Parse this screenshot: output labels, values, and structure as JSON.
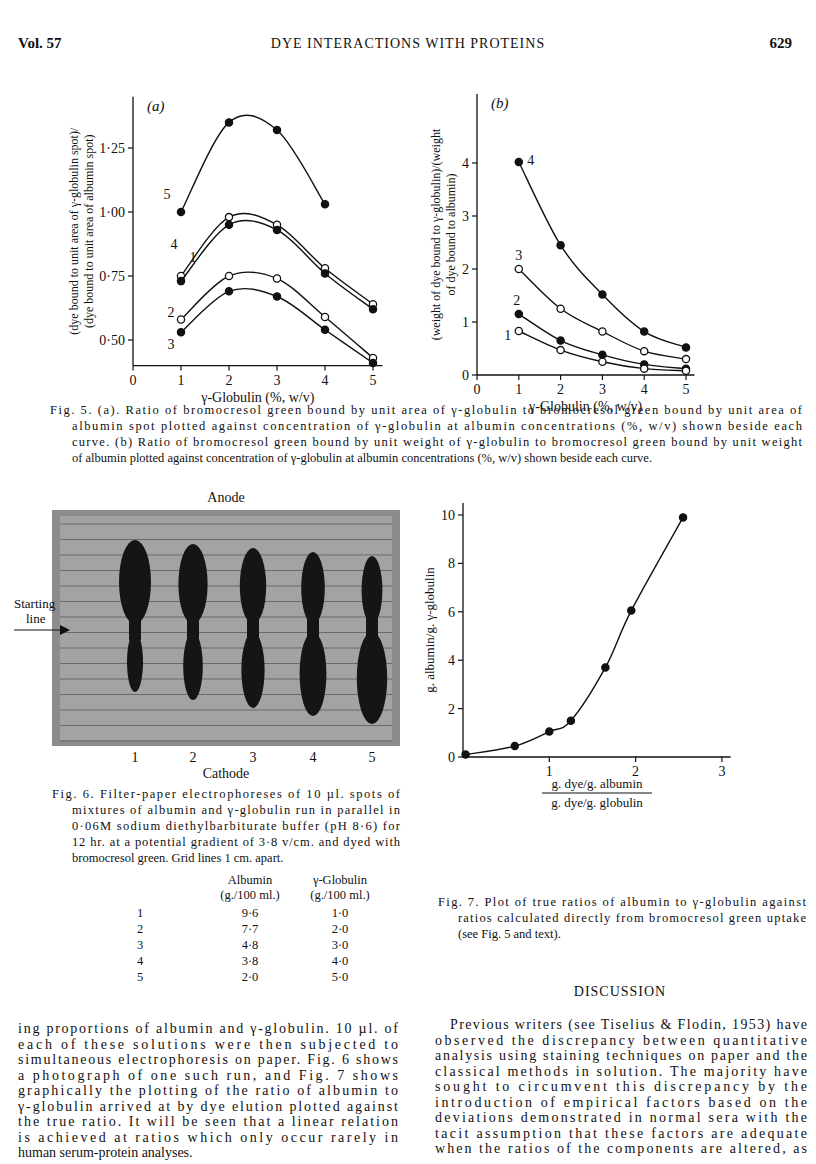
{
  "header": {
    "volume": "Vol. 57",
    "title": "DYE INTERACTIONS WITH PROTEINS",
    "page": "629"
  },
  "chart_data": [
    {
      "type": "line",
      "panel_label": "(a)",
      "x_label": "γ-Globulin (%, w/v)",
      "y_label": [
        "(dye bound to unit area of γ-globulin spot)/",
        "(dye bound to unit area of albumin spot)"
      ],
      "x": [
        1,
        2,
        3,
        4,
        5
      ],
      "series": [
        {
          "name": "5",
          "marker": "filled",
          "color": "#111111",
          "values": [
            1.0,
            1.35,
            1.32,
            1.03,
            null
          ]
        },
        {
          "name": "4",
          "marker": "open",
          "color": "#111111",
          "values": [
            0.75,
            0.98,
            0.95,
            0.78,
            0.64
          ]
        },
        {
          "name": "1",
          "marker": "filled",
          "color": "#111111",
          "values": [
            0.73,
            0.95,
            0.93,
            0.76,
            0.62
          ]
        },
        {
          "name": "2",
          "marker": "open",
          "color": "#111111",
          "values": [
            0.58,
            0.75,
            0.74,
            0.59,
            0.43
          ]
        },
        {
          "name": "3",
          "marker": "filled",
          "color": "#111111",
          "values": [
            0.53,
            0.69,
            0.67,
            0.54,
            0.41
          ]
        }
      ],
      "xlim": [
        0,
        5.2
      ],
      "ylim": [
        0.4,
        1.45
      ],
      "xticks": [
        0,
        1,
        2,
        3,
        4,
        5
      ],
      "yticks": [
        {
          "value": 0.5,
          "label": "0·50"
        },
        {
          "value": 0.75,
          "label": "0·75"
        },
        {
          "value": 1.0,
          "label": "1·00"
        },
        {
          "value": 1.25,
          "label": "1·25"
        }
      ]
    },
    {
      "type": "line",
      "panel_label": "(b)",
      "x_label": "γ-Globulin (%, w/v)",
      "y_label": [
        "(weight of dye bound to γ-globulin)/(weight",
        "of dye bound to albumin)"
      ],
      "x": [
        1,
        2,
        3,
        4,
        5
      ],
      "series": [
        {
          "name": "4",
          "marker": "filled",
          "color": "#111111",
          "values": [
            4.02,
            2.45,
            1.52,
            0.82,
            0.52
          ]
        },
        {
          "name": "3",
          "marker": "open",
          "color": "#111111",
          "values": [
            2.0,
            1.25,
            0.82,
            0.45,
            0.3
          ]
        },
        {
          "name": "2",
          "marker": "filled",
          "color": "#111111",
          "values": [
            1.15,
            0.65,
            0.38,
            0.2,
            0.12
          ]
        },
        {
          "name": "1",
          "marker": "open",
          "color": "#111111",
          "values": [
            0.83,
            0.47,
            0.25,
            0.12,
            0.08
          ]
        }
      ],
      "xlim": [
        0,
        5.2
      ],
      "ylim": [
        0,
        5.3
      ],
      "xticks": [
        0,
        1,
        2,
        3,
        4,
        5
      ],
      "yticks": [
        0,
        1,
        2,
        3,
        4
      ]
    },
    {
      "type": "line",
      "marker": "filled",
      "color": "#111111",
      "y_label": "g. albumin/g. γ-globulin",
      "x_label": "g. dye/g. albumin",
      "x_label_denominator": "g. dye/g. globulin",
      "x": [
        0.03,
        0.6,
        1.0,
        1.25,
        1.65,
        1.95,
        2.55
      ],
      "values": [
        0.1,
        0.45,
        1.05,
        1.5,
        3.7,
        6.05,
        9.9
      ],
      "xlim": [
        0,
        3.1
      ],
      "ylim": [
        0,
        10.5
      ],
      "xticks": [
        1,
        2,
        3
      ],
      "yticks": [
        0,
        2,
        4,
        6,
        8,
        10
      ]
    }
  ],
  "captions": {
    "fig5": [
      "Fig. 5. (a). Ratio of bromocresol green bound by unit area of γ-globulin to bromocresol green bound by unit area of",
      "albumin spot plotted against concentration of γ-globulin at albumin concentrations (%, w/v) shown beside each",
      "curve. (b) Ratio of bromocresol green bound by unit weight of γ-globulin to bromocresol green bound by unit weight",
      "of albumin plotted against concentration of γ-globulin at albumin concentrations (%, w/v) shown beside each curve."
    ],
    "fig6": [
      "Fig. 6. Filter-paper electrophoreses of 10 µl. spots of",
      "mixtures of albumin and γ-globulin run in parallel in",
      "0·06M sodium diethylbarbiturate buffer (pH 8·6) for",
      "12 hr. at a potential gradient of 3·8 v/cm. and dyed with",
      "bromocresol green. Grid lines 1 cm. apart."
    ],
    "fig7": [
      "Fig. 7. Plot of true ratios of albumin to γ-globulin against",
      "ratios calculated directly from bromocresol green uptake",
      "(see Fig. 5 and text)."
    ]
  },
  "fig6_photo": {
    "top": "Anode",
    "bottom": "Cathode",
    "start": [
      "Starting",
      "line"
    ],
    "lanes": [
      "1",
      "2",
      "3",
      "4",
      "5"
    ]
  },
  "fig6_table": {
    "columns": [
      [
        "Albumin",
        "(g./100 ml.)"
      ],
      [
        "γ-Globulin",
        "(g./100 ml.)"
      ]
    ],
    "rows": [
      [
        "1",
        "9·6",
        "1·0"
      ],
      [
        "2",
        "7·7",
        "2·0"
      ],
      [
        "3",
        "4·8",
        "3·0"
      ],
      [
        "4",
        "3·8",
        "4·0"
      ],
      [
        "5",
        "2·0",
        "5·0"
      ]
    ]
  },
  "body": {
    "left": [
      "ing proportions of albumin and γ-globulin. 10 µl. of",
      "each of these solutions were then subjected to",
      "simultaneous electrophoresis on paper. Fig. 6 shows",
      "a photograph of one such run, and Fig. 7 shows",
      "graphically the plotting of the ratio of albumin to",
      "γ-globulin arrived at by dye elution plotted against",
      "the true ratio. It will be seen that a linear relation",
      "is achieved at ratios which only occur rarely in",
      "human serum-protein analyses."
    ],
    "heading": "DISCUSSION",
    "right": [
      "Previous writers (see Tiselius & Flodin, 1953) have",
      "observed the discrepancy between quantitative",
      "analysis using staining techniques on paper and the",
      "classical methods in solution. The majority have",
      "sought to circumvent this discrepancy by the",
      "introduction of empirical factors based on the",
      "deviations demonstrated in normal sera with the",
      "tacit assumption that these factors are adequate",
      "when the ratios of the components are altered, as"
    ]
  }
}
